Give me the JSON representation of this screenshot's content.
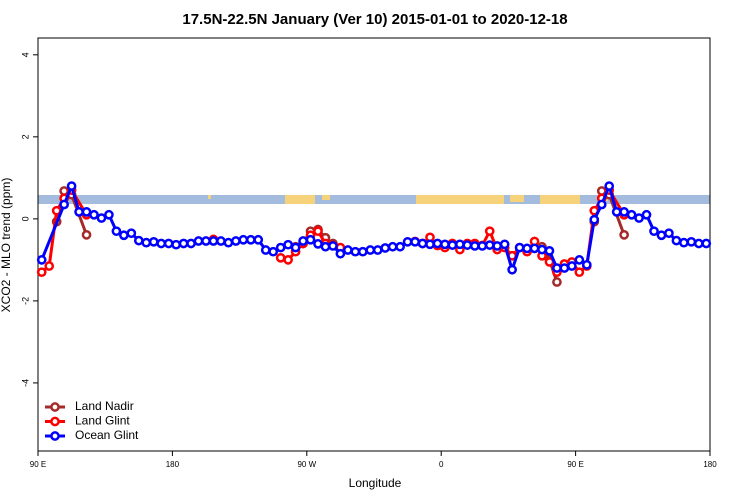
{
  "chart_data": {
    "type": "line",
    "title": "17.5N-22.5N January (Ver 10)   2015-01-01 to 2020-12-18",
    "x_label": "Longitude",
    "y_label": "XCO2 - MLO trend (ppm)",
    "xlim": [
      90,
      540
    ],
    "ylim": [
      -5.66,
      4.41
    ],
    "xticks": [
      {
        "value": 90,
        "label": "90 E"
      },
      {
        "value": 180,
        "label": "180"
      },
      {
        "value": 270,
        "label": "90 W"
      },
      {
        "value": 360,
        "label": "0"
      },
      {
        "value": 450,
        "label": "90 E"
      },
      {
        "value": 540,
        "label": "180"
      }
    ],
    "yticks": [
      -4,
      -2,
      0,
      2,
      4
    ],
    "grid": false,
    "legend": "bottom-left",
    "series": [
      {
        "name": "Land Nadir",
        "color": "#a52a2a",
        "x": [
          102.5,
          107.5,
          112.5,
          122.5,
          null,
          262.5,
          267.5,
          272.5,
          277.5,
          282.5,
          287.5,
          null,
          427.5,
          432.5,
          437.5,
          null,
          462.5,
          467.5,
          472.5,
          482.5
        ],
        "values": [
          -0.07,
          0.68,
          0.59,
          -0.39,
          null,
          -0.68,
          -0.6,
          -0.3,
          -0.26,
          -0.46,
          -0.6,
          null,
          -0.68,
          -1.0,
          -1.54,
          null,
          -0.07,
          0.68,
          0.59,
          -0.39
        ]
      },
      {
        "name": "Land Glint",
        "color": "#ff0000",
        "x": [
          92.5,
          97.5,
          102.5,
          107.5,
          112.5,
          122.5,
          null,
          207.5,
          null,
          252.5,
          257.5,
          262.5,
          267.5,
          272.5,
          277.5,
          282.5,
          287.5,
          292.5,
          null,
          342.5,
          347.5,
          352.5,
          357.5,
          362.5,
          367.5,
          372.5,
          377.5,
          382.5,
          387.5,
          392.5,
          397.5,
          402.5,
          407.5,
          412.5,
          417.5,
          422.5,
          427.5,
          432.5,
          437.5,
          442.5,
          447.5,
          452.5,
          457.5,
          462.5,
          467.5,
          472.5,
          482.5
        ],
        "values": [
          -1.3,
          -1.15,
          0.2,
          0.5,
          0.7,
          0.1,
          null,
          -0.5,
          null,
          -0.95,
          -1.0,
          -0.8,
          -0.6,
          -0.4,
          -0.3,
          -0.6,
          -0.65,
          -0.7,
          null,
          -0.55,
          -0.6,
          -0.45,
          -0.65,
          -0.7,
          -0.6,
          -0.75,
          -0.6,
          -0.6,
          -0.65,
          -0.3,
          -0.75,
          -0.7,
          -0.9,
          -0.7,
          -0.8,
          -0.55,
          -0.9,
          -1.05,
          -1.3,
          -1.1,
          -1.05,
          -1.3,
          -1.15,
          0.2,
          0.5,
          0.7,
          0.1
        ]
      },
      {
        "name": "Ocean Glint",
        "color": "#0000ff",
        "x": [
          92.5,
          107.5,
          112.5,
          117.5,
          122.5,
          127.5,
          132.5,
          137.5,
          142.5,
          147.5,
          152.5,
          157.5,
          162.5,
          167.5,
          172.5,
          177.5,
          182.5,
          187.5,
          192.5,
          197.5,
          202.5,
          207.5,
          212.5,
          217.5,
          222.5,
          227.5,
          232.5,
          237.5,
          242.5,
          247.5,
          252.5,
          257.5,
          262.5,
          267.5,
          272.5,
          277.5,
          282.5,
          287.5,
          292.5,
          297.5,
          302.5,
          307.5,
          312.5,
          317.5,
          322.5,
          327.5,
          332.5,
          337.5,
          342.5,
          347.5,
          352.5,
          357.5,
          362.5,
          367.5,
          372.5,
          377.5,
          382.5,
          387.5,
          392.5,
          397.5,
          402.5,
          407.5,
          412.5,
          417.5,
          422.5,
          427.5,
          432.5,
          437.5,
          442.5,
          447.5,
          452.5,
          457.5,
          462.5,
          467.5,
          472.5,
          477.5,
          482.5,
          487.5,
          492.5,
          497.5,
          502.5,
          507.5,
          512.5,
          517.5,
          522.5,
          527.5,
          532.5,
          537.5
        ],
        "values": [
          -1.0,
          0.35,
          0.8,
          0.17,
          0.17,
          0.1,
          0.02,
          0.1,
          -0.3,
          -0.4,
          -0.35,
          -0.53,
          -0.58,
          -0.56,
          -0.6,
          -0.6,
          -0.63,
          -0.6,
          -0.6,
          -0.54,
          -0.54,
          -0.54,
          -0.54,
          -0.58,
          -0.54,
          -0.51,
          -0.51,
          -0.51,
          -0.76,
          -0.8,
          -0.7,
          -0.63,
          -0.7,
          -0.54,
          -0.51,
          -0.61,
          -0.68,
          -0.66,
          -0.85,
          -0.76,
          -0.8,
          -0.8,
          -0.76,
          -0.76,
          -0.71,
          -0.68,
          -0.68,
          -0.56,
          -0.56,
          -0.6,
          -0.62,
          -0.6,
          -0.62,
          -0.64,
          -0.62,
          -0.64,
          -0.66,
          -0.66,
          -0.64,
          -0.66,
          -0.62,
          -1.24,
          -0.7,
          -0.72,
          -0.72,
          -0.75,
          -0.78,
          -1.2,
          -1.2,
          -1.15,
          -1.0,
          -1.12,
          -0.02,
          0.35,
          0.8,
          0.17,
          0.17,
          0.1,
          0.02,
          0.1,
          -0.3,
          -0.4,
          -0.35,
          -0.53,
          -0.58,
          -0.56,
          -0.6,
          -0.6
        ]
      }
    ]
  }
}
